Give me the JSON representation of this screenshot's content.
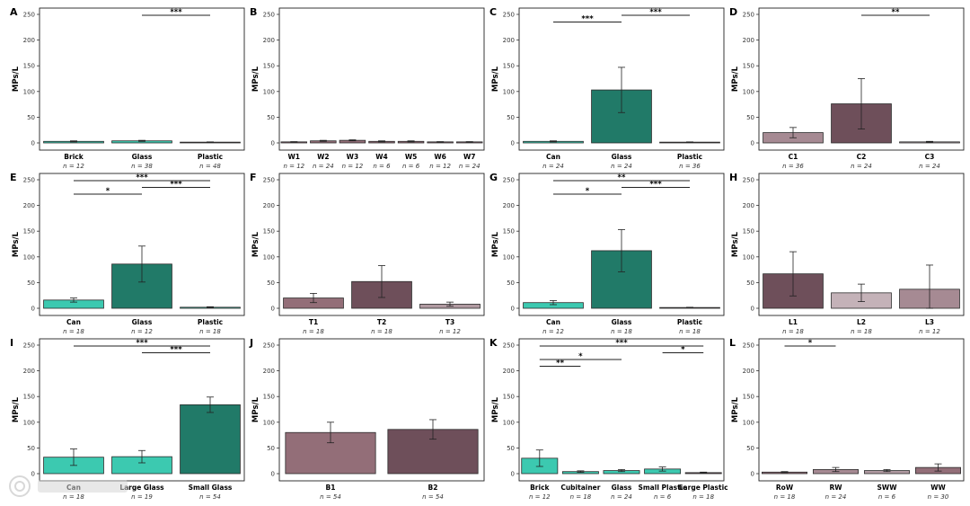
{
  "chart_data": [
    {
      "panel_label": "A",
      "type": "bar",
      "ylabel": "MPs/L",
      "ylim": [
        0,
        250
      ],
      "yticks": [
        0,
        50,
        100,
        150,
        200,
        250
      ],
      "categories": [
        "Brick",
        "Glass",
        "Plastic"
      ],
      "n_labels": [
        "n = 12",
        "n = 38",
        "n = 48"
      ],
      "values": [
        3,
        4,
        1.5
      ],
      "errors": [
        1,
        1,
        0.5
      ],
      "colors": [
        "#3cc9b0",
        "#3cc9b0",
        "#6e4f5a"
      ],
      "significance": [
        {
          "from": 1,
          "to": 2,
          "label": "***"
        }
      ]
    },
    {
      "panel_label": "B",
      "type": "bar",
      "ylabel": "MPs/L",
      "ylim": [
        0,
        250
      ],
      "yticks": [
        0,
        50,
        100,
        150,
        200,
        250
      ],
      "categories": [
        "W1",
        "W2",
        "W3",
        "W4",
        "W5",
        "W6",
        "W7"
      ],
      "n_labels": [
        "n = 12",
        "n = 24",
        "n = 12",
        "n = 6",
        "n = 6",
        "n = 12",
        "n = 24"
      ],
      "values": [
        2,
        4,
        5,
        3,
        3,
        2,
        2
      ],
      "errors": [
        0.5,
        1,
        1,
        1,
        1,
        0.5,
        0.5
      ],
      "colors": [
        "#936e78",
        "#936e78",
        "#936e78",
        "#936e78",
        "#936e78",
        "#936e78",
        "#936e78"
      ],
      "significance": []
    },
    {
      "panel_label": "C",
      "type": "bar",
      "ylabel": "MPs/L",
      "ylim": [
        0,
        250
      ],
      "yticks": [
        0,
        50,
        100,
        150,
        200,
        250
      ],
      "categories": [
        "Can",
        "Glass",
        "Plastic"
      ],
      "n_labels": [
        "n = 24",
        "n = 24",
        "n = 36"
      ],
      "values": [
        3,
        103,
        1.5
      ],
      "errors": [
        1,
        44,
        0.5
      ],
      "colors": [
        "#3cc9b0",
        "#217a68",
        "#6e4f5a"
      ],
      "significance": [
        {
          "from": 0,
          "to": 1,
          "label": "***"
        },
        {
          "from": 1,
          "to": 2,
          "label": "***"
        }
      ]
    },
    {
      "panel_label": "D",
      "type": "bar",
      "ylabel": "MPs/L",
      "ylim": [
        0,
        250
      ],
      "yticks": [
        0,
        50,
        100,
        150,
        200,
        250
      ],
      "categories": [
        "C1",
        "C2",
        "C3"
      ],
      "n_labels": [
        "n = 36",
        "n = 24",
        "n = 24"
      ],
      "values": [
        20,
        76,
        2
      ],
      "errors": [
        10,
        49,
        1
      ],
      "colors": [
        "#a68a93",
        "#6e4f5a",
        "#c4b2b8"
      ],
      "significance": [
        {
          "from": 1,
          "to": 2,
          "label": "**"
        }
      ]
    },
    {
      "panel_label": "E",
      "type": "bar",
      "ylabel": "MPs/L",
      "ylim": [
        0,
        250
      ],
      "yticks": [
        0,
        50,
        100,
        150,
        200,
        250
      ],
      "categories": [
        "Can",
        "Glass",
        "Plastic"
      ],
      "n_labels": [
        "n = 18",
        "n = 12",
        "n = 18"
      ],
      "values": [
        16,
        86,
        2
      ],
      "errors": [
        4,
        35,
        1
      ],
      "colors": [
        "#3cc9b0",
        "#217a68",
        "#3cc9b0"
      ],
      "significance": [
        {
          "from": 0,
          "to": 1,
          "label": "*"
        },
        {
          "from": 1,
          "to": 2,
          "label": "***"
        },
        {
          "from": 0,
          "to": 2,
          "label": "***"
        }
      ]
    },
    {
      "panel_label": "F",
      "type": "bar",
      "ylabel": "MPs/L",
      "ylim": [
        0,
        250
      ],
      "yticks": [
        0,
        50,
        100,
        150,
        200,
        250
      ],
      "categories": [
        "T1",
        "T2",
        "T3"
      ],
      "n_labels": [
        "n = 18",
        "n = 18",
        "n = 12"
      ],
      "values": [
        20,
        52,
        8
      ],
      "errors": [
        9,
        31,
        4
      ],
      "colors": [
        "#936e78",
        "#6e4f5a",
        "#b09aa1"
      ],
      "significance": []
    },
    {
      "panel_label": "G",
      "type": "bar",
      "ylabel": "MPs/L",
      "ylim": [
        0,
        250
      ],
      "yticks": [
        0,
        50,
        100,
        150,
        200,
        250
      ],
      "categories": [
        "Can",
        "Glass",
        "Plastic"
      ],
      "n_labels": [
        "n = 12",
        "n = 18",
        "n = 18"
      ],
      "values": [
        11,
        112,
        1.5
      ],
      "errors": [
        4,
        41,
        0.5
      ],
      "colors": [
        "#3cc9b0",
        "#217a68",
        "#6e4f5a"
      ],
      "significance": [
        {
          "from": 0,
          "to": 1,
          "label": "*"
        },
        {
          "from": 1,
          "to": 2,
          "label": "***"
        },
        {
          "from": 0,
          "to": 2,
          "label": "**"
        }
      ]
    },
    {
      "panel_label": "H",
      "type": "bar",
      "ylabel": "MPs/L",
      "ylim": [
        0,
        250
      ],
      "yticks": [
        0,
        50,
        100,
        150,
        200,
        250
      ],
      "categories": [
        "L1",
        "L2",
        "L3"
      ],
      "n_labels": [
        "n = 18",
        "n = 18",
        "n = 12"
      ],
      "values": [
        67,
        30,
        37
      ],
      "errors": [
        43,
        17,
        47
      ],
      "colors": [
        "#6e4f5a",
        "#c4b2b8",
        "#a68a93"
      ],
      "significance": []
    },
    {
      "panel_label": "I",
      "type": "bar",
      "ylabel": "MPs/L",
      "ylim": [
        0,
        250
      ],
      "yticks": [
        0,
        50,
        100,
        150,
        200,
        250
      ],
      "categories": [
        "Can",
        "Large Glass",
        "Small Glass"
      ],
      "n_labels": [
        "n = 18",
        "n = 19",
        "n = 54"
      ],
      "values": [
        32,
        33,
        134
      ],
      "errors": [
        16,
        12,
        15
      ],
      "colors": [
        "#3cc9b0",
        "#3cc9b0",
        "#217a68"
      ],
      "significance": [
        {
          "from": 1,
          "to": 2,
          "label": "***"
        },
        {
          "from": 0,
          "to": 2,
          "label": "***"
        }
      ]
    },
    {
      "panel_label": "J",
      "type": "bar",
      "ylabel": "MPs/L",
      "ylim": [
        0,
        250
      ],
      "yticks": [
        0,
        50,
        100,
        150,
        200,
        250
      ],
      "categories": [
        "B1",
        "B2"
      ],
      "n_labels": [
        "n = 54",
        "n = 54"
      ],
      "values": [
        80,
        86
      ],
      "errors": [
        20,
        19
      ],
      "colors": [
        "#936e78",
        "#6e4f5a"
      ],
      "significance": []
    },
    {
      "panel_label": "K",
      "type": "bar",
      "ylabel": "MPs/L",
      "ylim": [
        0,
        250
      ],
      "yticks": [
        0,
        50,
        100,
        150,
        200,
        250
      ],
      "categories": [
        "Brick",
        "Cubitainer",
        "Glass",
        "Small Plastic",
        "Large Plastic"
      ],
      "n_labels": [
        "n = 12",
        "n = 18",
        "n = 24",
        "n = 6",
        "n = 18"
      ],
      "values": [
        30,
        4,
        6,
        9,
        2
      ],
      "errors": [
        16,
        1.5,
        2,
        4,
        1
      ],
      "colors": [
        "#3cc9b0",
        "#3cc9b0",
        "#3cc9b0",
        "#3cc9b0",
        "#6e4f5a"
      ],
      "significance": [
        {
          "from": 0,
          "to": 1,
          "label": "**"
        },
        {
          "from": 0,
          "to": 2,
          "label": "*"
        },
        {
          "from": 3,
          "to": 4,
          "label": "*"
        },
        {
          "from": 0,
          "to": 4,
          "label": "***"
        }
      ]
    },
    {
      "panel_label": "L",
      "type": "bar",
      "ylabel": "MPs/L",
      "ylim": [
        0,
        250
      ],
      "yticks": [
        0,
        50,
        100,
        150,
        200,
        250
      ],
      "categories": [
        "RoW",
        "RW",
        "SWW",
        "WW"
      ],
      "n_labels": [
        "n = 18",
        "n = 24",
        "n = 6",
        "n = 30"
      ],
      "values": [
        3,
        8,
        6,
        12
      ],
      "errors": [
        1,
        4,
        2,
        7
      ],
      "colors": [
        "#936e78",
        "#a68a93",
        "#b09aa1",
        "#936e78"
      ],
      "significance": [
        {
          "from": 0,
          "to": 1,
          "label": "*"
        }
      ]
    }
  ]
}
